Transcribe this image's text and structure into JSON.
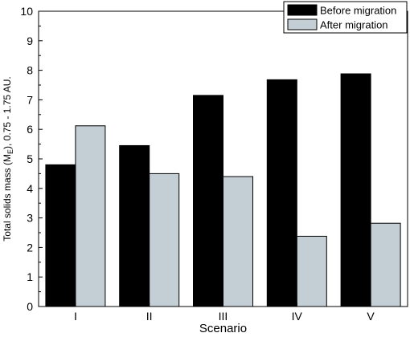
{
  "chart_data": {
    "type": "bar",
    "categories": [
      "I",
      "II",
      "III",
      "IV",
      "V"
    ],
    "series": [
      {
        "name": "Before migration",
        "color": "#000000",
        "values": [
          4.8,
          5.45,
          7.15,
          7.68,
          7.88
        ]
      },
      {
        "name": "After migration",
        "color": "#c3ced5",
        "values": [
          6.12,
          4.5,
          4.4,
          2.38,
          2.82
        ]
      }
    ],
    "xlabel": "Scenario",
    "ylabel_main": "Total solids mass (M",
    "ylabel_sub": "E",
    "ylabel_rest": "), 0.75 - 1.75 AU.",
    "ylim": [
      0,
      10
    ],
    "yticks": [
      0,
      1,
      2,
      3,
      4,
      5,
      6,
      7,
      8,
      9,
      10
    ],
    "grid": false,
    "legend_position": "top-right"
  }
}
